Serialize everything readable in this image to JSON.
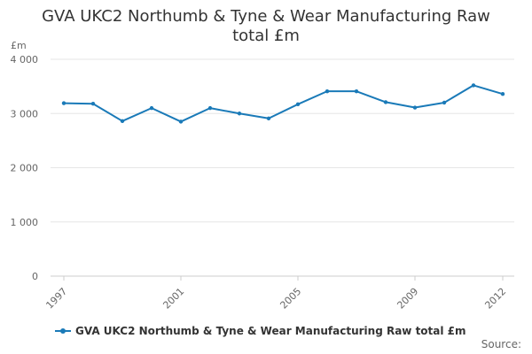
{
  "title_lines": [
    "GVA UKC2 Northumb & Tyne & Wear Manufacturing Raw",
    "total £m"
  ],
  "unit": "£m",
  "legend": {
    "label": "GVA UKC2 Northumb & Tyne & Wear Manufacturing Raw total £m"
  },
  "source": "Source:",
  "colors": {
    "series": "#1a7ab8",
    "grid": "#e6e6e6",
    "axis_text": "#666666"
  },
  "chart_data": {
    "type": "line",
    "title": "GVA UKC2 Northumb & Tyne & Wear Manufacturing Raw total £m",
    "ylabel": "£m",
    "ylim": [
      0,
      4000
    ],
    "yticks": [
      0,
      1000,
      2000,
      3000,
      4000
    ],
    "ytick_labels": [
      "0",
      "1 000",
      "2 000",
      "3 000",
      "4 000"
    ],
    "xlim": [
      1997,
      2012
    ],
    "xticks": [
      1997,
      2001,
      2005,
      2009,
      2012
    ],
    "grid": true,
    "legend_position": "bottom",
    "series": [
      {
        "name": "GVA UKC2 Northumb & Tyne & Wear Manufacturing Raw total £m",
        "x": [
          1997,
          1998,
          1999,
          2000,
          2001,
          2002,
          2003,
          2004,
          2005,
          2006,
          2007,
          2008,
          2009,
          2010,
          2011,
          2012
        ],
        "values": [
          3190,
          3180,
          2860,
          3100,
          2850,
          3100,
          3000,
          2910,
          3170,
          3410,
          3410,
          3210,
          3110,
          3200,
          3520,
          3360
        ]
      }
    ]
  }
}
